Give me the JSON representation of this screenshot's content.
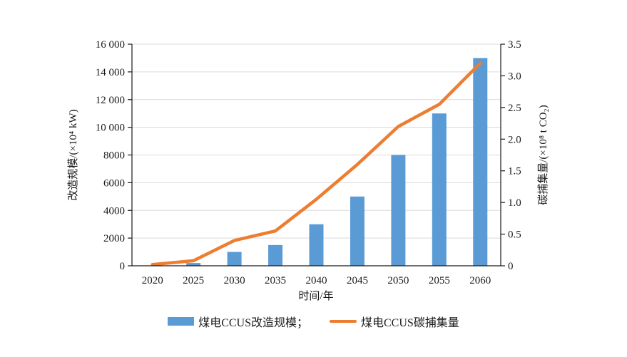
{
  "chart_data": {
    "type": "bar+line dual-axis",
    "categories": [
      "2020",
      "2025",
      "2030",
      "2035",
      "2040",
      "2045",
      "2050",
      "2055",
      "2060"
    ],
    "series": [
      {
        "name": "煤电CCUS改造规模",
        "type": "bar",
        "axis": "left",
        "color": "#5B9BD5",
        "values": [
          0,
          200,
          1000,
          1500,
          3000,
          5000,
          8000,
          11000,
          15000
        ]
      },
      {
        "name": "煤电CCUS碳捕集量",
        "type": "line",
        "axis": "right",
        "color": "#ED7D31",
        "values": [
          0.02,
          0.08,
          0.4,
          0.55,
          1.05,
          1.6,
          2.2,
          2.55,
          3.2
        ]
      }
    ],
    "left_axis": {
      "label": "改造规模/(×10⁴ kW)",
      "min": 0,
      "max": 16000,
      "step": 2000,
      "tick_labels": [
        "0",
        "2000",
        "4000",
        "6000",
        "8000",
        "10 000",
        "12 000",
        "14 000",
        "16 000"
      ]
    },
    "right_axis": {
      "label": "碳捕集量/(×10⁸ t CO₂)",
      "min": 0,
      "max": 3.5,
      "step": 0.5,
      "tick_labels": [
        "0",
        "0.5",
        "1.0",
        "1.5",
        "2.0",
        "2.5",
        "3.0",
        "3.5"
      ]
    },
    "x_axis": {
      "label": "时间/年"
    },
    "grid": true,
    "legend": {
      "position": "bottom",
      "items": [
        {
          "label": "煤电CCUS改造规模；",
          "swatch": "bar",
          "color": "#5B9BD5"
        },
        {
          "label": "煤电CCUS碳捕集量",
          "swatch": "line",
          "color": "#ED7D31"
        }
      ]
    },
    "colors": {
      "gridline": "#d9d9d9",
      "axis_line": "#1a1a1a"
    }
  }
}
